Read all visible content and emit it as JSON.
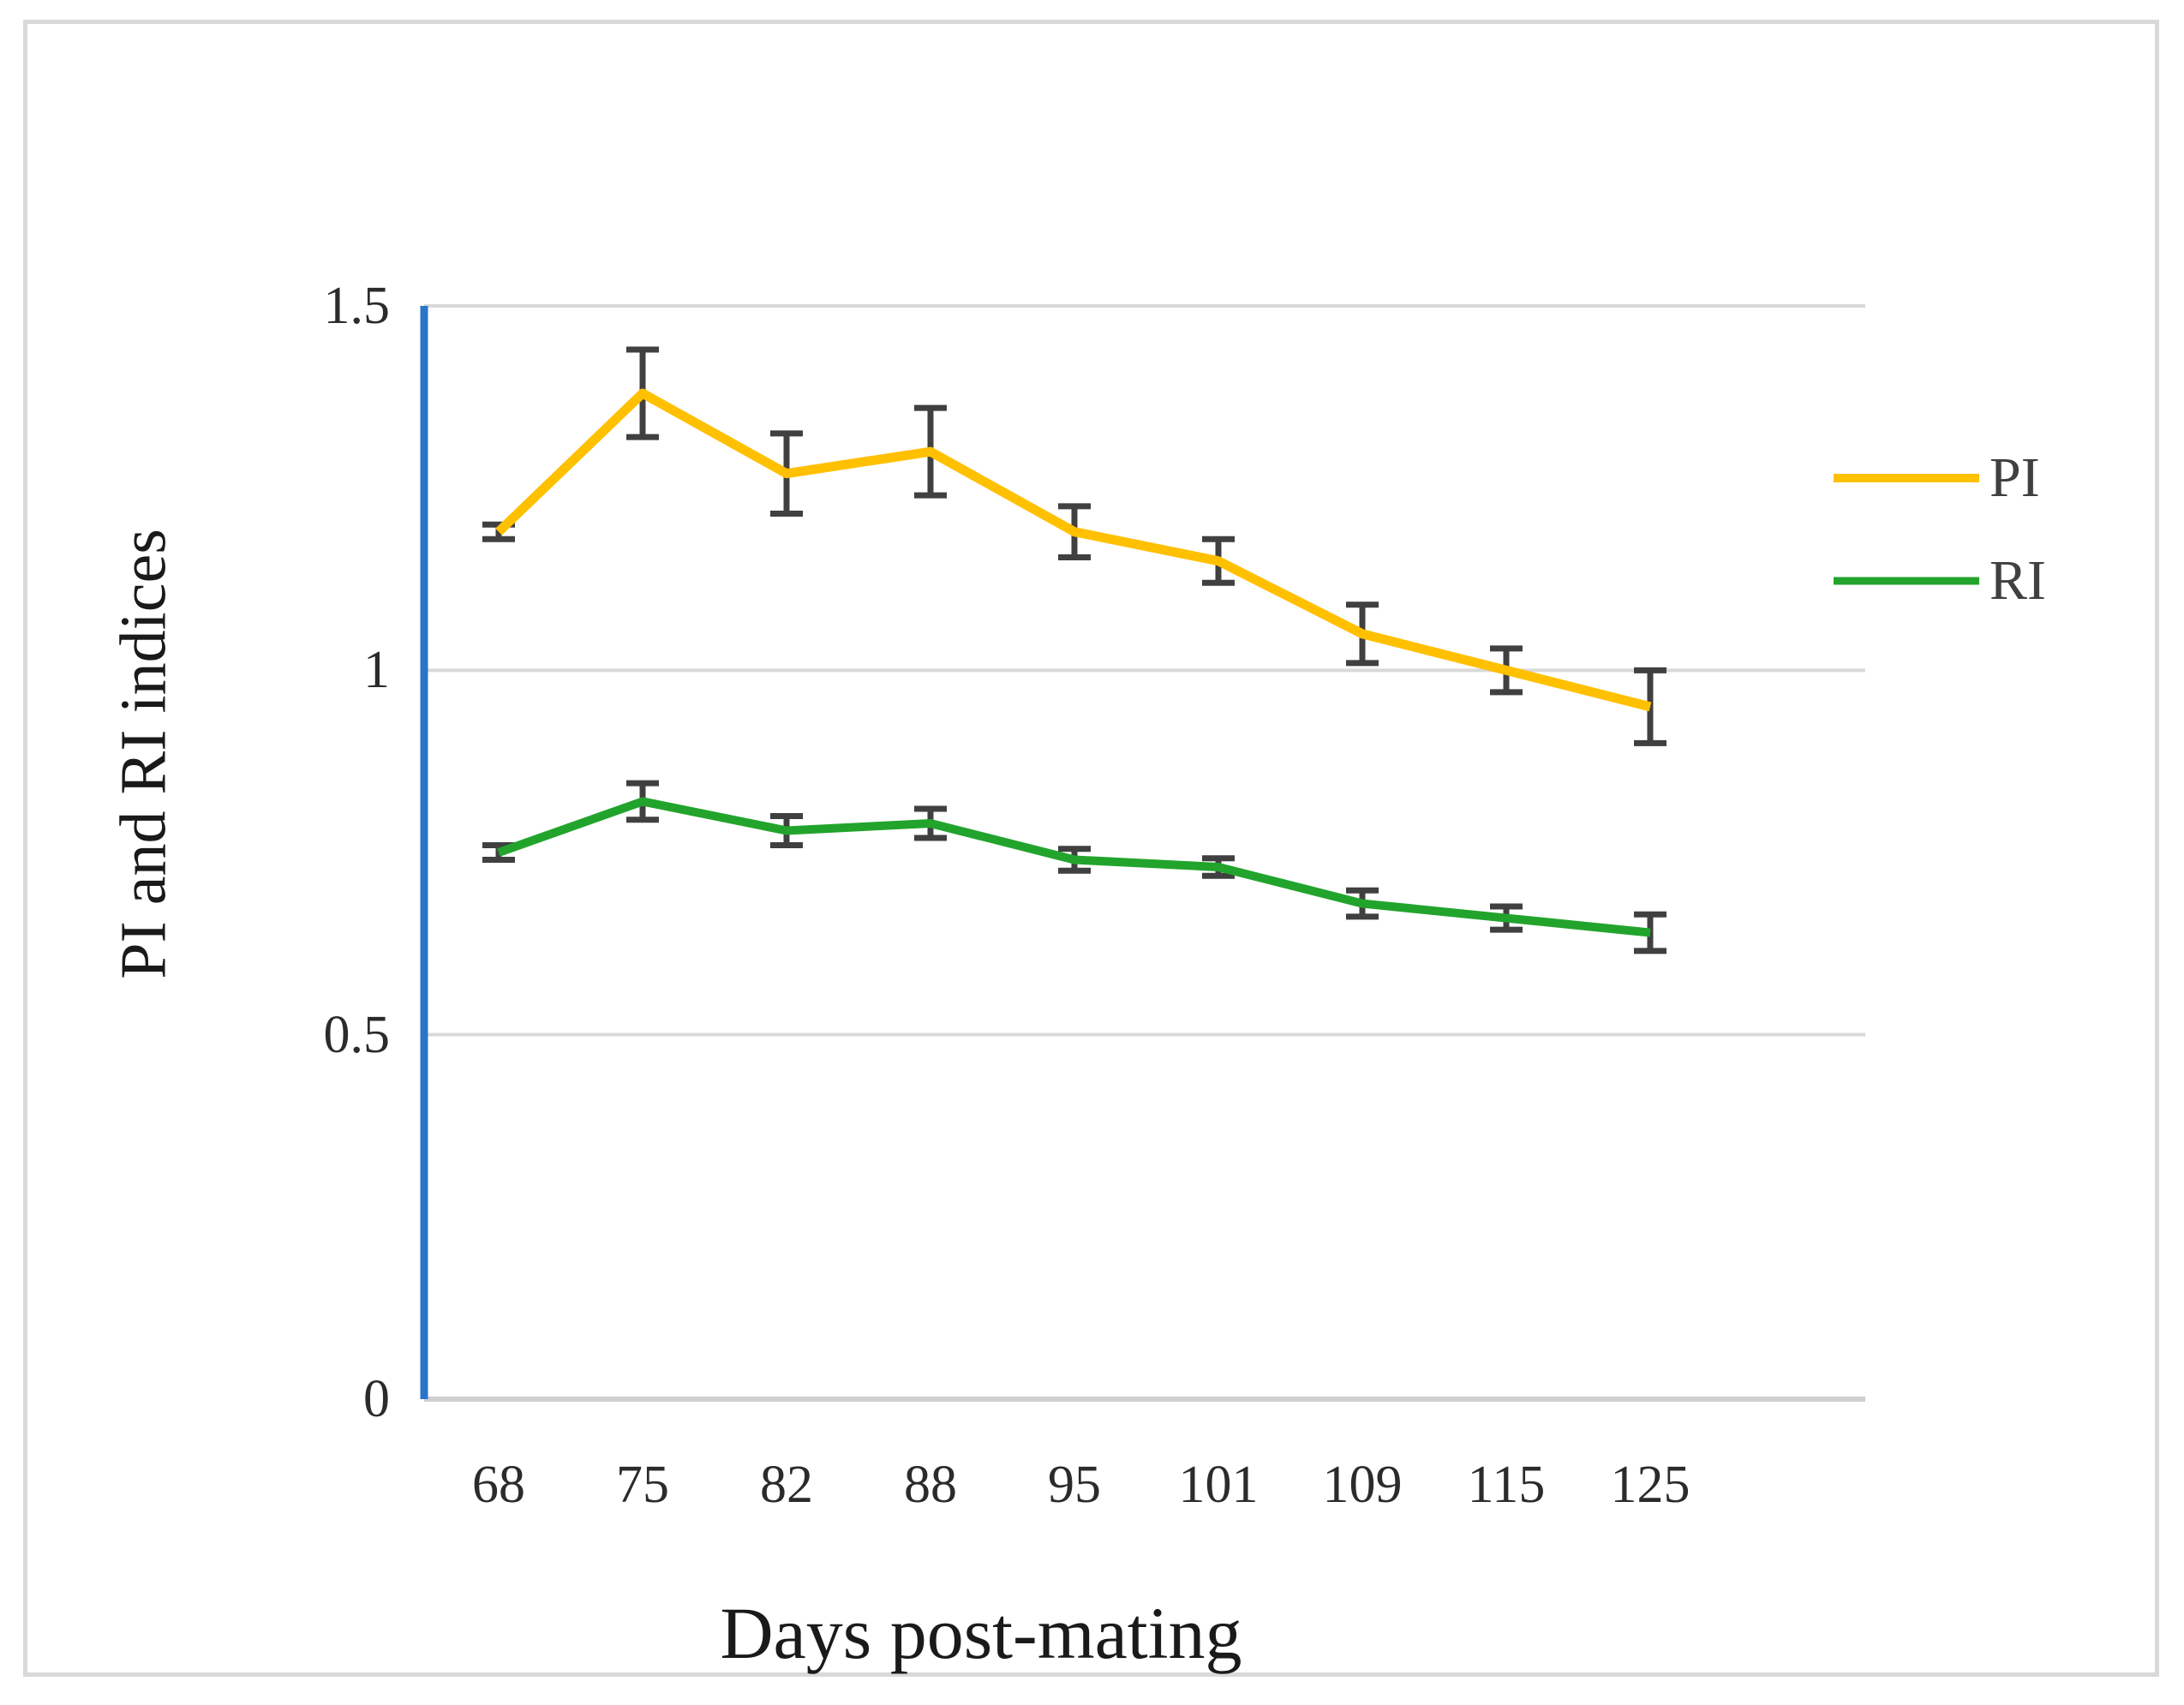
{
  "figure": {
    "background": "#ffffff",
    "border_color": "#d9d9d9"
  },
  "chart_data": {
    "type": "line",
    "title": "",
    "xlabel": "Days post-mating",
    "ylabel": "PI and RI indices",
    "categories": [
      "68",
      "75",
      "82",
      "88",
      "95",
      "101",
      "109",
      "115",
      "125"
    ],
    "y_ticks": [
      0,
      0.5,
      1,
      1.5
    ],
    "y_tick_labels": [
      "0",
      "0.5",
      "1",
      "1.5"
    ],
    "ylim": [
      0,
      1.5
    ],
    "grid": true,
    "legend_position": "right",
    "series": [
      {
        "name": "PI",
        "color": "#FFC000",
        "values": [
          1.19,
          1.38,
          1.27,
          1.3,
          1.19,
          1.15,
          1.05,
          1.0,
          0.95
        ],
        "errors": [
          0.01,
          0.06,
          0.055,
          0.06,
          0.035,
          0.03,
          0.04,
          0.03,
          0.05
        ]
      },
      {
        "name": "RI",
        "color": "#22A42C",
        "values": [
          0.75,
          0.82,
          0.78,
          0.79,
          0.74,
          0.73,
          0.68,
          0.66,
          0.64
        ],
        "errors": [
          0.01,
          0.025,
          0.02,
          0.02,
          0.015,
          0.012,
          0.018,
          0.016,
          0.025
        ]
      }
    ],
    "error_bar_color": "#404040",
    "y_axis_line_color": "#2B74C8",
    "gridline_color": "#d9d9d9",
    "baseline_color": "#cfcfcf"
  }
}
